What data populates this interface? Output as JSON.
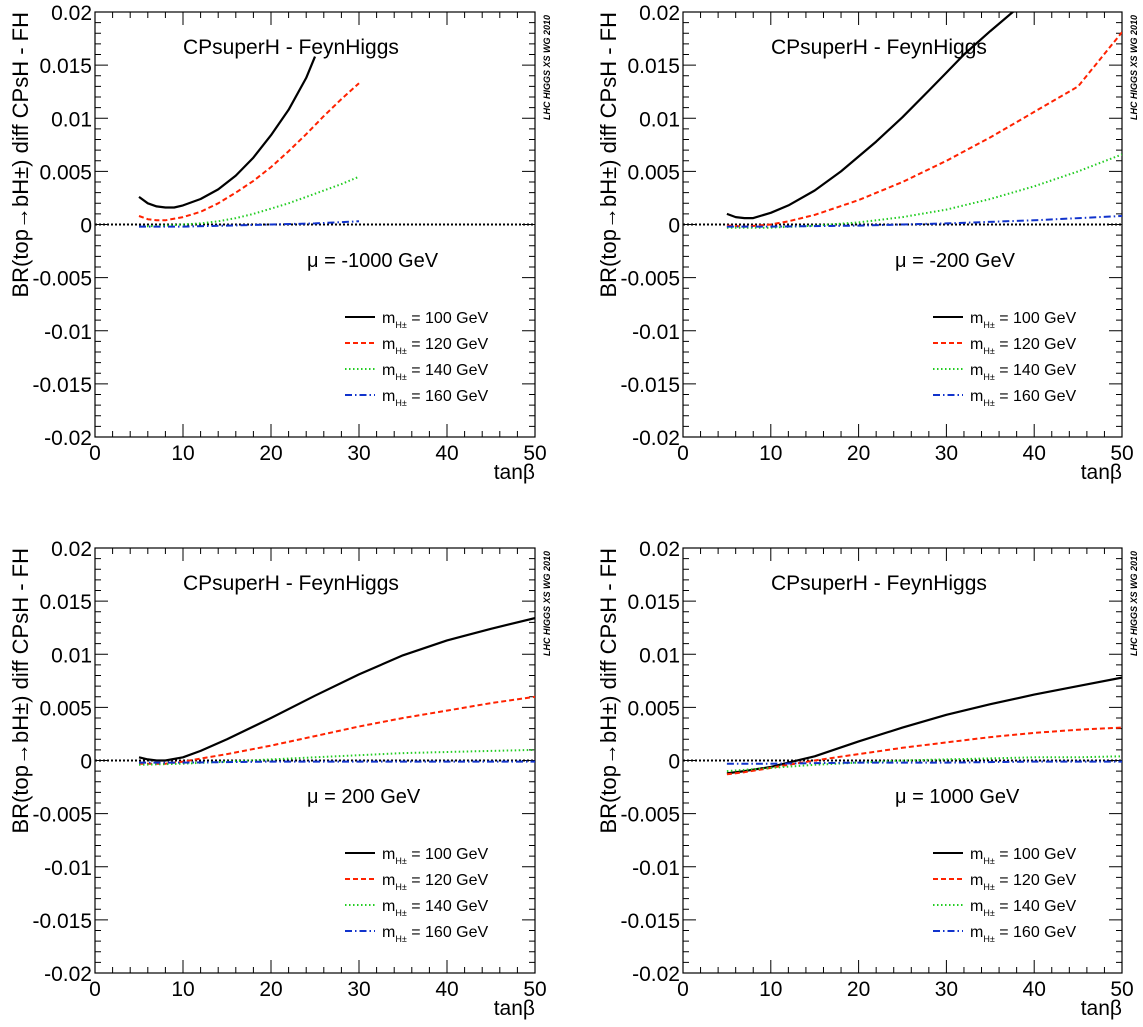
{
  "figure": {
    "watermark": "LHC HIGGS XS WG 2010"
  },
  "chart_data": [
    {
      "type": "line",
      "title": "CPsuperH - FeynHiggs",
      "annotation": "μ = -1000 GeV",
      "xlabel": "tanβ",
      "ylabel": "BR(top→bH±) diff CPsH - FH",
      "xlim": [
        0,
        50
      ],
      "ylim": [
        -0.02,
        0.02
      ],
      "x_ticks": [
        "0",
        "10",
        "20",
        "30",
        "40",
        "50"
      ],
      "y_ticks": [
        "-0.02",
        "-0.015",
        "-0.01",
        "-0.005",
        "0",
        "0.005",
        "0.01",
        "0.015",
        "0.02"
      ],
      "legend_position": "bottom-right",
      "grid": false,
      "series": [
        {
          "name": "m_H± = 100 GeV",
          "label_main": "m",
          "label_sub": "H±",
          "label_rest": " = 100 GeV",
          "color": "#000000",
          "dash": "solid",
          "x": [
            5,
            6,
            7,
            8,
            9,
            10,
            12,
            14,
            16,
            18,
            20,
            22,
            24,
            25
          ],
          "y": [
            0.0026,
            0.002,
            0.0017,
            0.0016,
            0.0016,
            0.0018,
            0.0024,
            0.0033,
            0.0046,
            0.0063,
            0.0084,
            0.0108,
            0.0138,
            0.0158
          ]
        },
        {
          "name": "m_H± = 120 GeV",
          "label_main": "m",
          "label_sub": "H±",
          "label_rest": " = 120 GeV",
          "color": "#ff2200",
          "dash": "dash",
          "x": [
            5,
            6,
            7,
            8,
            10,
            12,
            14,
            16,
            18,
            20,
            22,
            24,
            26,
            28,
            30
          ],
          "y": [
            0.0008,
            0.0005,
            0.0004,
            0.0004,
            0.0007,
            0.0012,
            0.002,
            0.003,
            0.0041,
            0.0054,
            0.0069,
            0.0085,
            0.0102,
            0.0118,
            0.0133
          ]
        },
        {
          "name": "m_H± = 140 GeV",
          "label_main": "m",
          "label_sub": "H±",
          "label_rest": " = 140 GeV",
          "color": "#22cc22",
          "dash": "dot",
          "x": [
            5,
            8,
            10,
            12,
            14,
            16,
            18,
            20,
            22,
            24,
            26,
            28,
            30
          ],
          "y": [
            -0.0002,
            -0.0001,
            0.0,
            0.0001,
            0.0003,
            0.0006,
            0.001,
            0.0015,
            0.002,
            0.0026,
            0.0032,
            0.0038,
            0.0045
          ]
        },
        {
          "name": "m_H± = 160 GeV",
          "label_main": "m",
          "label_sub": "H±",
          "label_rest": " = 160 GeV",
          "color": "#1133cc",
          "dash": "dashdot",
          "x": [
            5,
            10,
            15,
            20,
            25,
            30
          ],
          "y": [
            -0.0002,
            -0.0002,
            -0.0001,
            0.0,
            0.0001,
            0.0003
          ]
        }
      ]
    },
    {
      "type": "line",
      "title": "CPsuperH - FeynHiggs",
      "annotation": "μ = -200 GeV",
      "xlabel": "tanβ",
      "ylabel": "BR(top→bH±) diff CPsH - FH",
      "xlim": [
        0,
        50
      ],
      "ylim": [
        -0.02,
        0.02
      ],
      "x_ticks": [
        "0",
        "10",
        "20",
        "30",
        "40",
        "50"
      ],
      "y_ticks": [
        "-0.02",
        "-0.015",
        "-0.01",
        "-0.005",
        "0",
        "0.005",
        "0.01",
        "0.015",
        "0.02"
      ],
      "legend_position": "bottom-right",
      "grid": false,
      "series": [
        {
          "name": "m_H± = 100 GeV",
          "label_main": "m",
          "label_sub": "H±",
          "label_rest": " = 100 GeV",
          "color": "#000000",
          "dash": "solid",
          "x": [
            5,
            6,
            7,
            8,
            10,
            12,
            15,
            18,
            20,
            22,
            25,
            28,
            30,
            32,
            35,
            38
          ],
          "y": [
            0.001,
            0.0007,
            0.0006,
            0.0006,
            0.0011,
            0.0018,
            0.0032,
            0.005,
            0.0064,
            0.0078,
            0.0101,
            0.0126,
            0.0143,
            0.016,
            0.0182,
            0.0203
          ]
        },
        {
          "name": "m_H± = 120 GeV",
          "label_main": "m",
          "label_sub": "H±",
          "label_rest": " = 120 GeV",
          "color": "#ff2200",
          "dash": "dash",
          "x": [
            5,
            7,
            10,
            12,
            15,
            20,
            25,
            30,
            35,
            40,
            45,
            50
          ],
          "y": [
            -0.0001,
            -0.0002,
            0.0,
            0.0003,
            0.0009,
            0.0023,
            0.004,
            0.006,
            0.0082,
            0.0106,
            0.013,
            0.0181
          ]
        },
        {
          "name": "m_H± = 140 GeV",
          "label_main": "m",
          "label_sub": "H±",
          "label_rest": " = 140 GeV",
          "color": "#22cc22",
          "dash": "dot",
          "x": [
            5,
            10,
            15,
            20,
            25,
            30,
            35,
            40,
            45,
            50
          ],
          "y": [
            -0.0003,
            -0.0003,
            -0.0001,
            0.0002,
            0.0007,
            0.0014,
            0.0024,
            0.0036,
            0.005,
            0.0066
          ]
        },
        {
          "name": "m_H± = 160 GeV",
          "label_main": "m",
          "label_sub": "H±",
          "label_rest": " = 160 GeV",
          "color": "#1133cc",
          "dash": "dashdot",
          "x": [
            5,
            10,
            20,
            30,
            40,
            50
          ],
          "y": [
            -0.0002,
            -0.0002,
            -0.0001,
            0.0001,
            0.0004,
            0.0008
          ]
        }
      ]
    },
    {
      "type": "line",
      "title": "CPsuperH - FeynHiggs",
      "annotation": "μ = 200 GeV",
      "xlabel": "tanβ",
      "ylabel": "BR(top→bH±) diff CPsH - FH",
      "xlim": [
        0,
        50
      ],
      "ylim": [
        -0.02,
        0.02
      ],
      "x_ticks": [
        "0",
        "10",
        "20",
        "30",
        "40",
        "50"
      ],
      "y_ticks": [
        "-0.02",
        "-0.015",
        "-0.01",
        "-0.005",
        "0",
        "0.005",
        "0.01",
        "0.015",
        "0.02"
      ],
      "legend_position": "bottom-right",
      "grid": false,
      "series": [
        {
          "name": "m_H± = 100 GeV",
          "label_main": "m",
          "label_sub": "H±",
          "label_rest": " = 100 GeV",
          "color": "#000000",
          "dash": "solid",
          "x": [
            5,
            6,
            7,
            8,
            10,
            12,
            15,
            20,
            25,
            30,
            35,
            40,
            45,
            50
          ],
          "y": [
            0.0003,
            0.0001,
            0.0,
            0.0,
            0.0003,
            0.0009,
            0.002,
            0.004,
            0.0061,
            0.0081,
            0.0099,
            0.0113,
            0.0124,
            0.0134
          ]
        },
        {
          "name": "m_H± = 120 GeV",
          "label_main": "m",
          "label_sub": "H±",
          "label_rest": " = 120 GeV",
          "color": "#ff2200",
          "dash": "dash",
          "x": [
            5,
            8,
            10,
            15,
            20,
            25,
            30,
            35,
            40,
            45,
            50
          ],
          "y": [
            -0.0003,
            -0.0003,
            -0.0001,
            0.0006,
            0.0014,
            0.0023,
            0.0032,
            0.004,
            0.0047,
            0.0054,
            0.006
          ]
        },
        {
          "name": "m_H± = 140 GeV",
          "label_main": "m",
          "label_sub": "H±",
          "label_rest": " = 140 GeV",
          "color": "#22cc22",
          "dash": "dot",
          "x": [
            5,
            10,
            15,
            20,
            25,
            30,
            35,
            40,
            45,
            50
          ],
          "y": [
            -0.0004,
            -0.0003,
            -0.0001,
            0.0001,
            0.0003,
            0.0005,
            0.0007,
            0.0008,
            0.0009,
            0.001
          ]
        },
        {
          "name": "m_H± = 160 GeV",
          "label_main": "m",
          "label_sub": "H±",
          "label_rest": " = 160 GeV",
          "color": "#1133cc",
          "dash": "dashdot",
          "x": [
            5,
            10,
            20,
            30,
            40,
            50
          ],
          "y": [
            -0.0002,
            -0.0002,
            -0.0001,
            -0.0001,
            -0.0001,
            -0.0001
          ]
        }
      ]
    },
    {
      "type": "line",
      "title": "CPsuperH - FeynHiggs",
      "annotation": "μ = 1000 GeV",
      "xlabel": "tanβ",
      "ylabel": "BR(top→bH±) diff CPsH - FH",
      "xlim": [
        0,
        50
      ],
      "ylim": [
        -0.02,
        0.02
      ],
      "x_ticks": [
        "0",
        "10",
        "20",
        "30",
        "40",
        "50"
      ],
      "y_ticks": [
        "-0.02",
        "-0.015",
        "-0.01",
        "-0.005",
        "0",
        "0.005",
        "0.01",
        "0.015",
        "0.02"
      ],
      "legend_position": "bottom-right",
      "grid": false,
      "series": [
        {
          "name": "m_H± = 100 GeV",
          "label_main": "m",
          "label_sub": "H±",
          "label_rest": " = 100 GeV",
          "color": "#000000",
          "dash": "solid",
          "x": [
            5,
            7,
            10,
            12,
            15,
            20,
            25,
            30,
            35,
            40,
            45,
            50
          ],
          "y": [
            -0.0012,
            -0.001,
            -0.0006,
            -0.0002,
            0.0004,
            0.0018,
            0.0031,
            0.0043,
            0.0053,
            0.0062,
            0.007,
            0.0078
          ]
        },
        {
          "name": "m_H± = 120 GeV",
          "label_main": "m",
          "label_sub": "H±",
          "label_rest": " = 120 GeV",
          "color": "#ff2200",
          "dash": "dash",
          "x": [
            5,
            7,
            10,
            12,
            15,
            20,
            25,
            30,
            35,
            40,
            45,
            50
          ],
          "y": [
            -0.0013,
            -0.0011,
            -0.0007,
            -0.0004,
            0.0,
            0.0006,
            0.0012,
            0.0017,
            0.0022,
            0.0026,
            0.0029,
            0.0031
          ]
        },
        {
          "name": "m_H± = 140 GeV",
          "label_main": "m",
          "label_sub": "H±",
          "label_rest": " = 140 GeV",
          "color": "#22cc22",
          "dash": "dot",
          "x": [
            5,
            10,
            15,
            20,
            25,
            30,
            35,
            40,
            45,
            50
          ],
          "y": [
            -0.001,
            -0.0007,
            -0.0004,
            -0.0002,
            0.0,
            0.0001,
            0.0002,
            0.0003,
            0.0003,
            0.0004
          ]
        },
        {
          "name": "m_H± = 160 GeV",
          "label_main": "m",
          "label_sub": "H±",
          "label_rest": " = 160 GeV",
          "color": "#1133cc",
          "dash": "dashdot",
          "x": [
            5,
            10,
            20,
            30,
            40,
            50
          ],
          "y": [
            -0.0003,
            -0.0003,
            -0.0002,
            -0.0002,
            -0.0001,
            -0.0001
          ]
        }
      ]
    }
  ]
}
